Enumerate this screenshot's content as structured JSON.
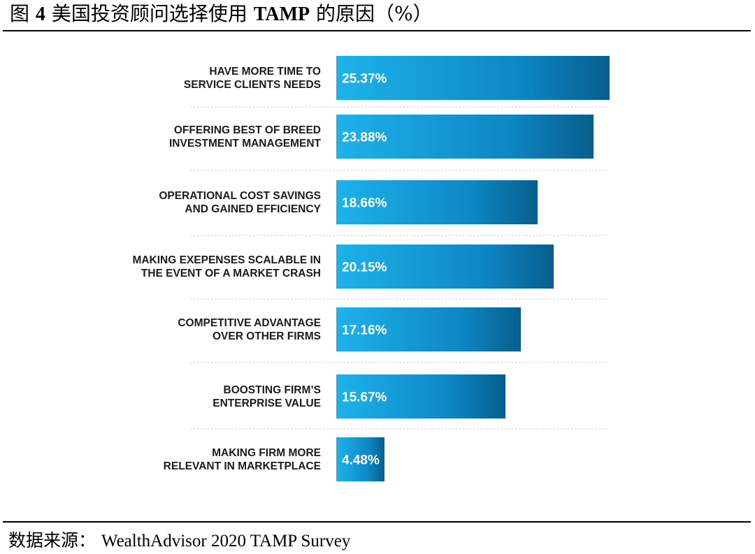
{
  "figure": {
    "title_prefix": "图",
    "number": "4",
    "title_text": "美国投资顾问选择使用",
    "title_bold": "TAMP",
    "title_suffix": "的原因（%）"
  },
  "source": {
    "label": "数据来源：",
    "text": "WealthAdvisor 2020 TAMP Survey"
  },
  "colors": {
    "bar_light": "#1eb2ea",
    "bar_mid": "#0d86c4",
    "bar_dark": "#075e8c",
    "separator": "#bdbdbd"
  },
  "chart_data": {
    "type": "bar",
    "orientation": "horizontal",
    "title": "美国投资顾问选择使用 TAMP 的原因（%）",
    "xlabel": "",
    "ylabel": "",
    "xlim": [
      0,
      25.37
    ],
    "unit": "%",
    "grid": false,
    "legend": "none",
    "categories": [
      [
        "HAVE MORE TIME TO",
        "SERVICE CLIENTS NEEDS"
      ],
      [
        "OFFERING BEST OF BREED",
        "INVESTMENT MANAGEMENT"
      ],
      [
        "OPERATIONAL COST SAVINGS",
        "AND GAINED EFFICIENCY"
      ],
      [
        "MAKING EXEPENSES SCALABLE IN",
        "THE EVENT OF A MARKET CRASH"
      ],
      [
        "COMPETITIVE ADVANTAGE",
        "OVER OTHER FIRMS"
      ],
      [
        "BOOSTING FIRM’S",
        "ENTERPRISE VALUE"
      ],
      [
        "MAKING FIRM MORE",
        "RELEVANT IN MARKETPLACE"
      ]
    ],
    "values": [
      25.37,
      23.88,
      18.66,
      20.15,
      17.16,
      15.67,
      4.48
    ],
    "value_labels": [
      "25.37%",
      "23.88%",
      "18.66%",
      "20.15%",
      "17.16%",
      "15.67%",
      "4.48%"
    ]
  }
}
